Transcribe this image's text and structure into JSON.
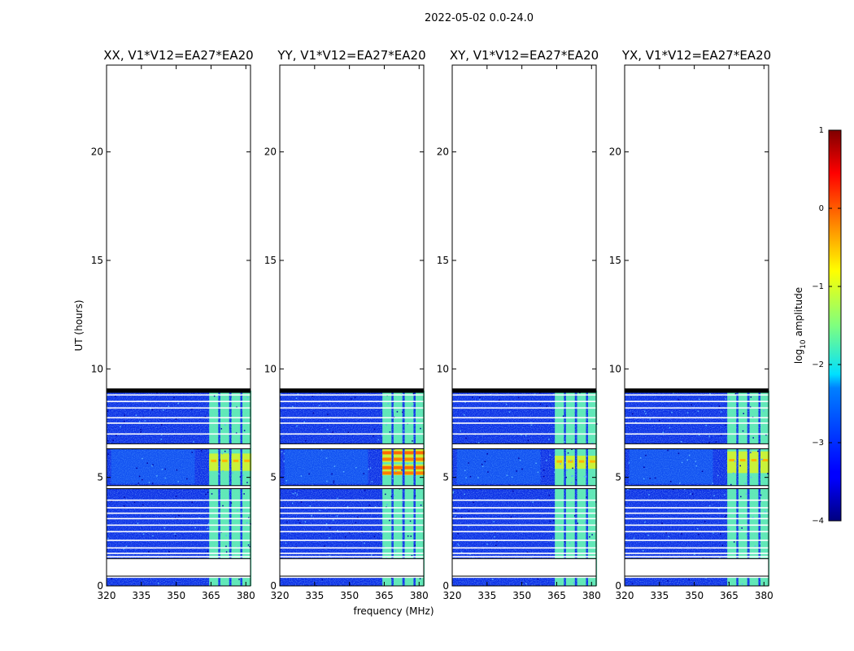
{
  "chart_data": {
    "type": "heatmap",
    "suptitle": "2022-05-02 0.0-24.0",
    "xlabel": "frequency (MHz)",
    "ylabel": "UT (hours)",
    "xlim": [
      320,
      382
    ],
    "ylim": [
      0,
      24
    ],
    "xticks": [
      "320",
      "335",
      "350",
      "365",
      "380"
    ],
    "yticks": [
      "0",
      "5",
      "10",
      "15",
      "20"
    ],
    "data_end_hour": 9.0,
    "bright_band_mhz": [
      364,
      380
    ],
    "bright_columns_mhz": [
      [
        364.2,
        368.1
      ],
      [
        369.0,
        372.8
      ],
      [
        373.8,
        377.6
      ],
      [
        378.5,
        382.4
      ]
    ],
    "flagged_ut_hours": [
      0.4,
      1.15,
      1.25,
      1.35,
      1.5,
      1.75,
      2.1,
      2.5,
      2.8,
      3.1,
      3.35,
      3.6,
      3.95,
      4.55,
      6.5,
      7.0,
      7.5,
      7.75,
      8.2,
      8.5,
      8.8
    ],
    "flagged_ut_ranges": [
      [
        0.45,
        1.25
      ],
      [
        4.48,
        4.62
      ],
      [
        6.32,
        6.55
      ],
      [
        8.9,
        9.1
      ]
    ],
    "panels": [
      {
        "title": "XX, V1*V12=EA27*EA20",
        "strong_hours": [
          [
            5.3,
            6.1
          ]
        ]
      },
      {
        "title": "YY, V1*V12=EA27*EA20",
        "strong_hours": [
          [
            5.1,
            5.6
          ],
          [
            5.7,
            6.3
          ]
        ]
      },
      {
        "title": "XY, V1*V12=EA27*EA20",
        "strong_hours": [
          [
            5.4,
            6.0
          ]
        ]
      },
      {
        "title": "YX, V1*V12=EA27*EA20",
        "strong_hours": [
          [
            5.2,
            6.2
          ]
        ]
      }
    ],
    "colorbar": {
      "label_prefix": "log",
      "label_sub": "10",
      "label_suffix": " amplitude",
      "range": [
        -4,
        1
      ],
      "ticks": [
        "1",
        "0",
        "−1",
        "−2",
        "−3",
        "−4"
      ],
      "colormap": "jet"
    }
  }
}
